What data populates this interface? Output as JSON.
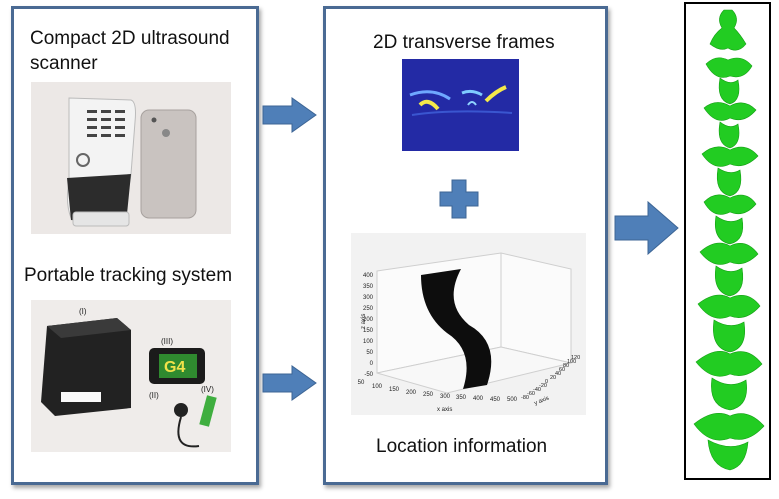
{
  "left_panel": {
    "scanner_title": "Compact 2D ultrasound\nscanner",
    "tracking_title": "Portable tracking system",
    "tracking_labels": [
      "(I)",
      "(II)",
      "(III)",
      "(IV)"
    ],
    "g4_logo": "G4"
  },
  "middle_panel": {
    "frames_title": "2D transverse frames",
    "location_title": "Location information",
    "plot": {
      "z_label": "z axis",
      "x_label": "x axis",
      "y_label": "y axis",
      "z_ticks": [
        "400",
        "350",
        "300",
        "250",
        "200",
        "150",
        "100",
        "50",
        "0",
        "-50"
      ],
      "x_ticks": [
        "50",
        "100",
        "150",
        "200",
        "250",
        "300",
        "350",
        "400",
        "450",
        "500"
      ],
      "y_ticks": [
        "-80",
        "-60",
        "-40",
        "-20",
        "0",
        "20",
        "40",
        "60",
        "80",
        "100",
        "120"
      ]
    }
  },
  "colors": {
    "panel_border": "#4a6a93",
    "arrow": "#4f7fb8",
    "spine": "#22cc22"
  }
}
